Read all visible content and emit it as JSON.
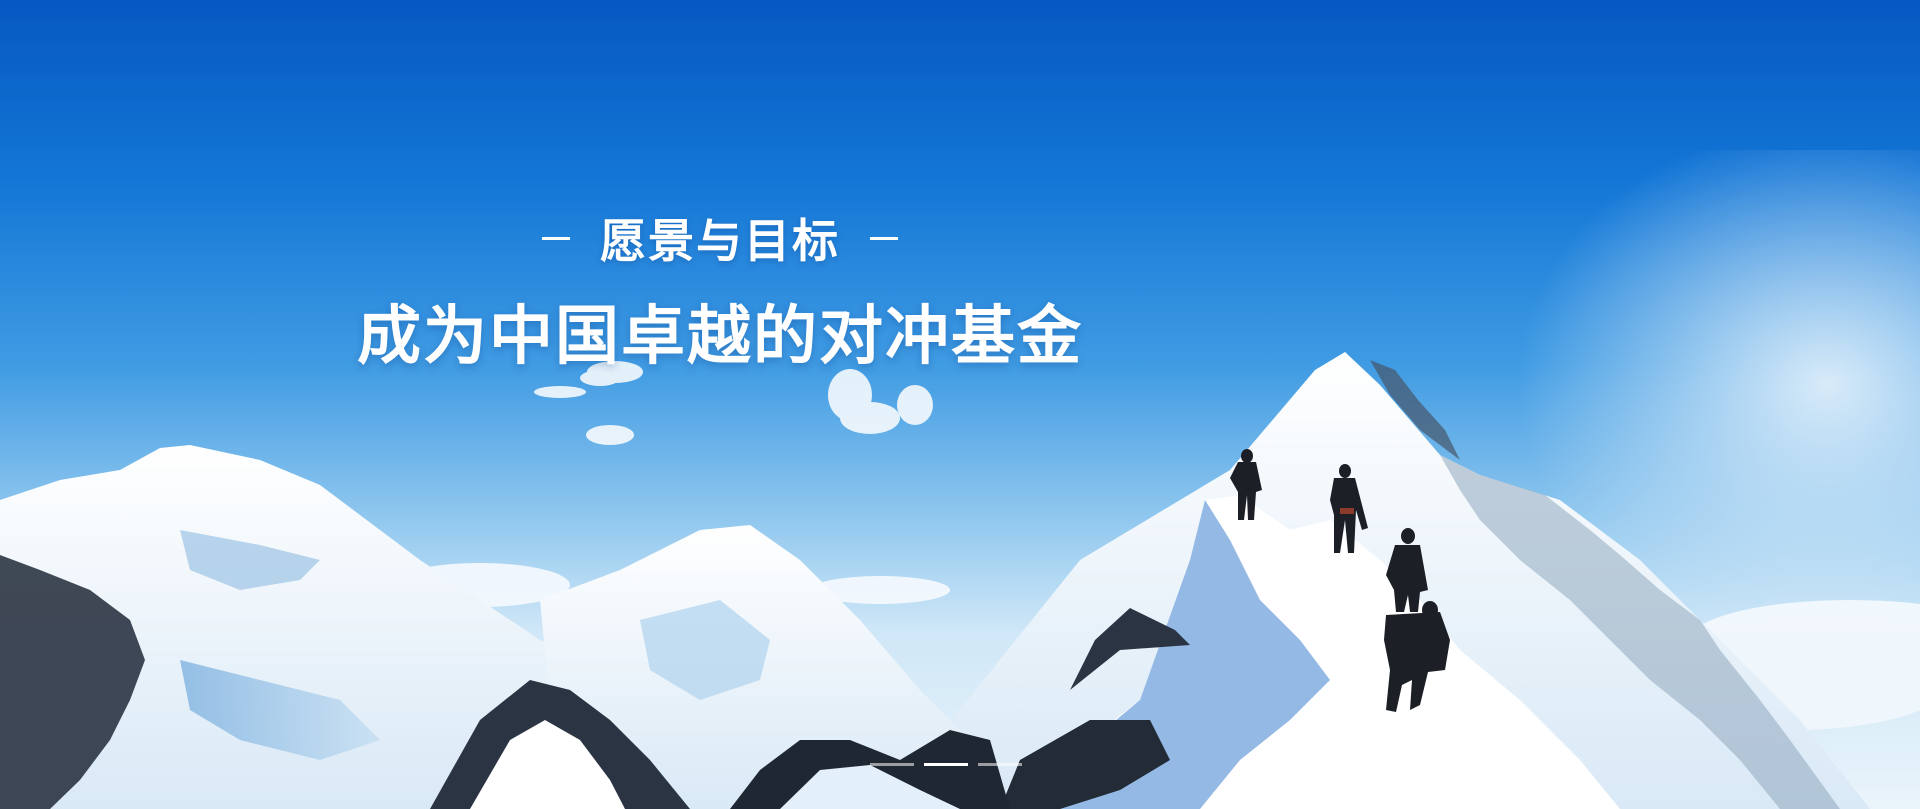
{
  "banner": {
    "eyebrow": "愿景与目标",
    "title": "成为中国卓越的对冲基金"
  },
  "pager": {
    "slides": [
      "slide-1",
      "slide-2",
      "slide-3"
    ],
    "active_index": 1
  },
  "colors": {
    "sky_top": "#0658c2",
    "sky_bottom": "#eaf4fb",
    "snow": "#ffffff",
    "rock": "#2b3442",
    "shadow_snow": "#b7d6ef"
  }
}
